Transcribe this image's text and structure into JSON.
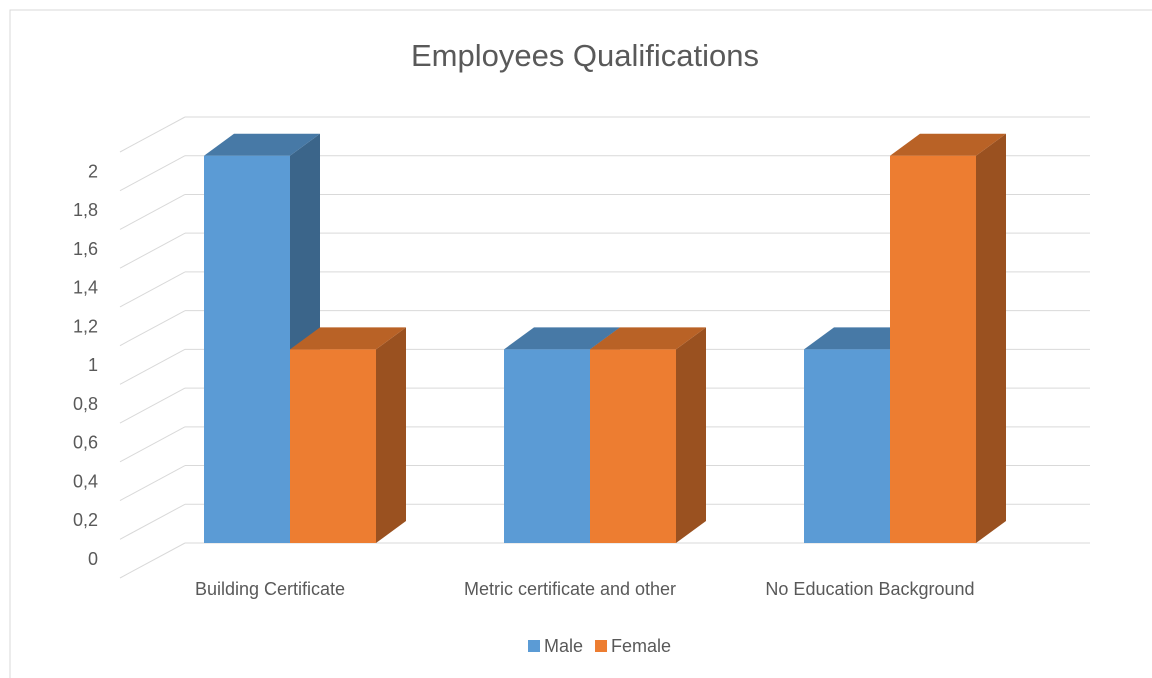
{
  "chart_data": {
    "type": "bar3d",
    "title": "Employees Qualifications",
    "categories": [
      "Building Certificate",
      "Metric certificate and other",
      "No Education Background"
    ],
    "series": [
      {
        "name": "Male",
        "color": "#5b9bd5",
        "values": [
          2,
          1,
          1
        ]
      },
      {
        "name": "Female",
        "color": "#ed7d31",
        "values": [
          1,
          1,
          2
        ]
      }
    ],
    "ylim": [
      0,
      2.2
    ],
    "yticks": [
      0,
      {
        "value": 0.2,
        "label": "0,2"
      },
      {
        "value": 0.4,
        "label": "0,4"
      },
      {
        "value": 0.6,
        "label": "0,6"
      },
      {
        "value": 0.8,
        "label": "0,8"
      },
      1,
      {
        "value": 1.2,
        "label": "1,2"
      },
      {
        "value": 1.4,
        "label": "1,4"
      },
      {
        "value": 1.6,
        "label": "1,6"
      },
      {
        "value": 1.8,
        "label": "1,8"
      },
      2
    ],
    "grid": true,
    "legend": "bottom"
  }
}
